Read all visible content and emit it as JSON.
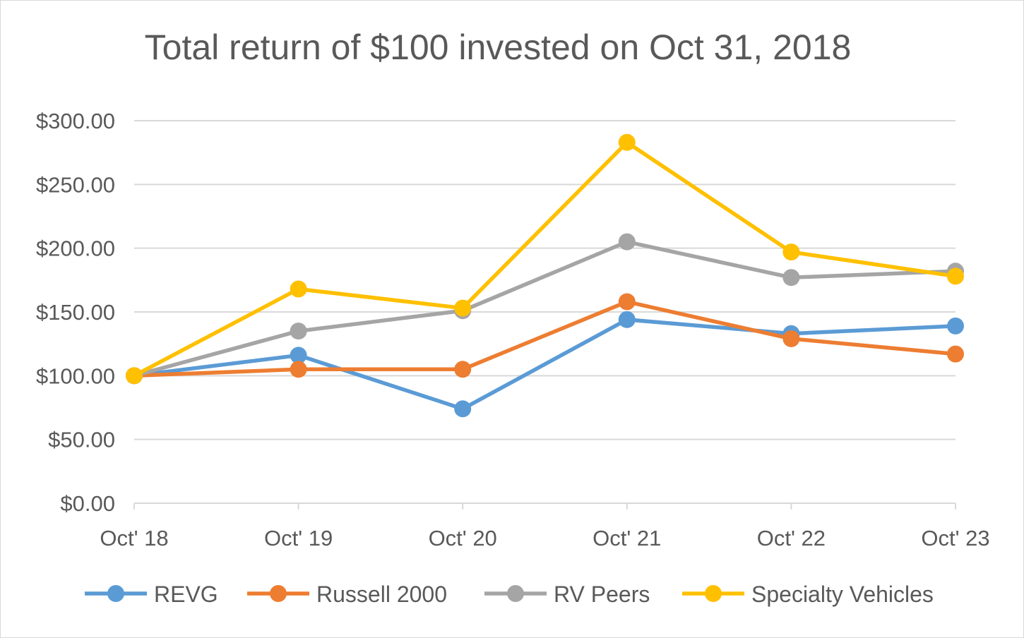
{
  "chart_data": {
    "type": "line",
    "title": "Total return of $100 invested on Oct 31, 2018",
    "categories": [
      "Oct' 18",
      "Oct' 19",
      "Oct' 20",
      "Oct' 21",
      "Oct' 22",
      "Oct' 23"
    ],
    "ylim": [
      0,
      300
    ],
    "yticks": [
      "$0.00",
      "$50.00",
      "$100.00",
      "$150.00",
      "$200.00",
      "$250.00",
      "$300.00"
    ],
    "ytick_values": [
      0,
      50,
      100,
      150,
      200,
      250,
      300
    ],
    "grid": true,
    "legend_position": "bottom",
    "series": [
      {
        "name": "REVG",
        "color": "#5b9bd5",
        "values": [
          100,
          116,
          74,
          144,
          133,
          139
        ]
      },
      {
        "name": "Russell 2000",
        "color": "#ed7d31",
        "values": [
          100,
          105,
          105,
          158,
          129,
          117
        ]
      },
      {
        "name": "RV Peers",
        "color": "#a5a5a5",
        "values": [
          100,
          135,
          151,
          205,
          177,
          182
        ]
      },
      {
        "name": "Specialty Vehicles",
        "color": "#ffc000",
        "values": [
          100,
          168,
          153,
          283,
          197,
          178
        ]
      }
    ]
  }
}
